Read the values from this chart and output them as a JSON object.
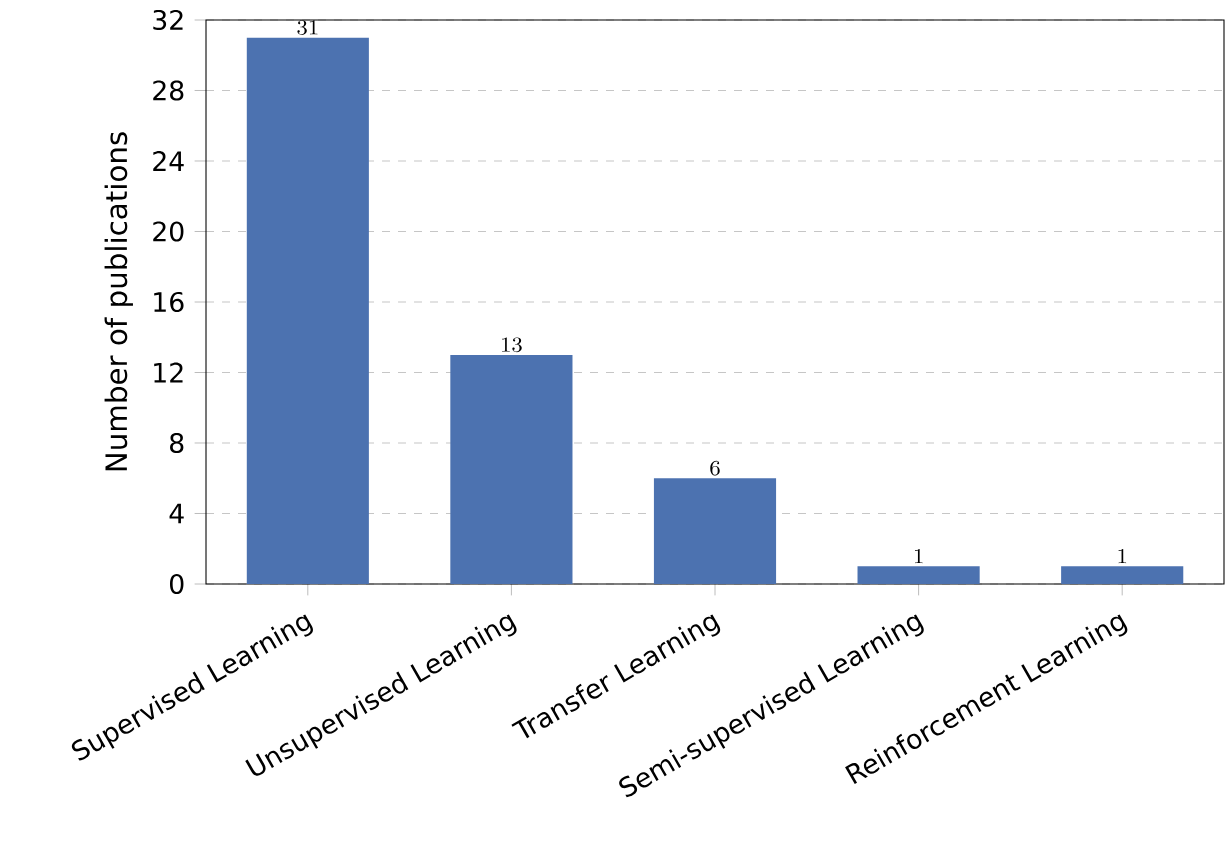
{
  "chart_data": {
    "type": "bar",
    "ylabel": "Number of publications",
    "categories": [
      "Supervised Learning",
      "Unsupervised Learning",
      "Transfer Learning",
      "Semi-supervised Learning",
      "Reinforcement Learning"
    ],
    "values": [
      31,
      13,
      6,
      1,
      1
    ],
    "color": "#4c72b0",
    "ylim": [
      0,
      32
    ],
    "yticks": [
      0,
      4,
      8,
      12,
      16,
      20,
      24,
      28,
      32
    ],
    "grid": "y",
    "data_labels": true
  }
}
